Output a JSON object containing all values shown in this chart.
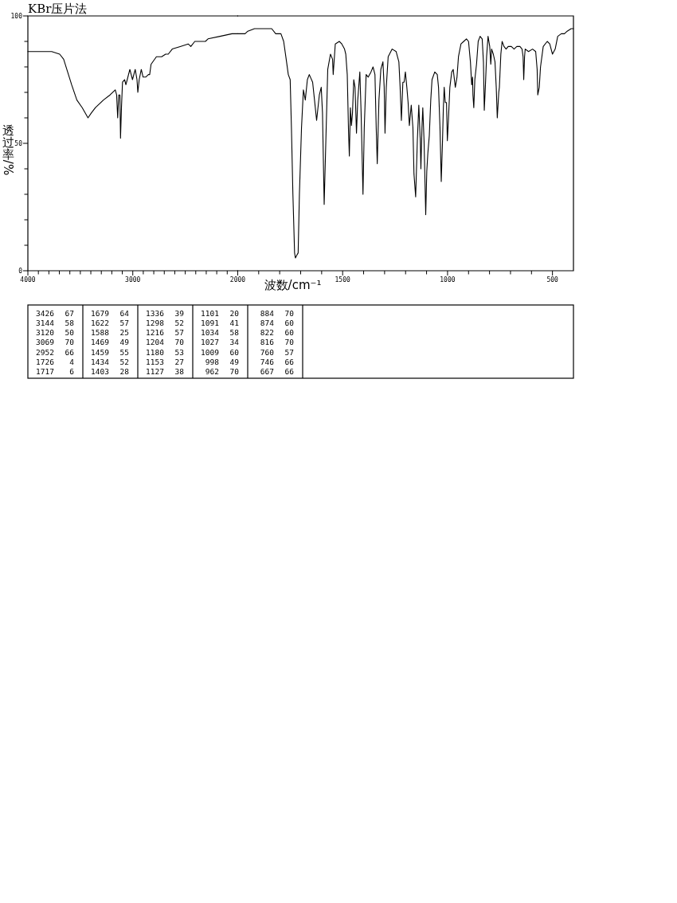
{
  "chart_data": [
    {
      "type": "line",
      "title": "KBr压片法",
      "ylabel": "透过率/%",
      "color": "#000000",
      "x": [
        4000,
        3886,
        3773,
        3697,
        3659,
        3621,
        3583,
        3533,
        3482,
        3427,
        3394,
        3356,
        3280,
        3217,
        3167,
        3154,
        3144,
        3134,
        3123,
        3117,
        3108,
        3098,
        3078,
        3066,
        3053,
        3028,
        3003,
        2977,
        2960,
        2952,
        2939,
        2919,
        2902,
        2877,
        2851,
        2839,
        2826,
        2775,
        2725,
        2687,
        2662,
        2624,
        2548,
        2472,
        2447,
        2409,
        2371,
        2308,
        2283,
        2169,
        2055,
        2005,
        2000
      ],
      "values": [
        86,
        86,
        86,
        85,
        83,
        78,
        73,
        67,
        64,
        60,
        62,
        64,
        67,
        69,
        71,
        69,
        60,
        69,
        69,
        52,
        64,
        74,
        75,
        73,
        75,
        79,
        75,
        79,
        75,
        70,
        75,
        79,
        76,
        76,
        77,
        77,
        81,
        84,
        84,
        85,
        85,
        87,
        88,
        89,
        88,
        90,
        90,
        90,
        91,
        92,
        93,
        93,
        93
      ],
      "xlim": [
        4000,
        2000
      ],
      "xticks": [
        4000,
        {
          "value": 3900,
          "label": null
        },
        {
          "value": 3800,
          "label": null
        },
        {
          "value": 3700,
          "label": null
        },
        {
          "value": 3600,
          "label": null
        },
        {
          "value": 3500,
          "label": null
        },
        {
          "value": 3400,
          "label": null
        },
        {
          "value": 3300,
          "label": null
        },
        {
          "value": 3200,
          "label": null
        },
        {
          "value": 3100,
          "label": null
        },
        3000,
        {
          "value": 2900,
          "label": null
        },
        {
          "value": 2800,
          "label": null
        },
        {
          "value": 2700,
          "label": null
        },
        {
          "value": 2600,
          "label": null
        },
        {
          "value": 2500,
          "label": null
        },
        {
          "value": 2400,
          "label": null
        },
        {
          "value": 2300,
          "label": null
        },
        {
          "value": 2200,
          "label": null
        },
        {
          "value": 2100,
          "label": null
        },
        2000
      ],
      "ylim": [
        0,
        100
      ],
      "yticks": [
        0,
        {
          "value": 10,
          "label": null
        },
        {
          "value": 20,
          "label": null
        },
        {
          "value": 30,
          "label": null
        },
        {
          "value": 40,
          "label": null
        },
        50,
        {
          "value": 60,
          "label": null
        },
        {
          "value": 70,
          "label": null
        },
        {
          "value": 80,
          "label": null
        },
        {
          "value": 90,
          "label": null
        },
        100
      ]
    },
    {
      "type": "line",
      "xlabel": "波数/cm⁻¹",
      "color": "#000000",
      "x": [
        2000,
        1965,
        1952,
        1920,
        1870,
        1838,
        1819,
        1807,
        1794,
        1781,
        1769,
        1759,
        1750,
        1744,
        1737,
        1729,
        1725,
        1719,
        1712,
        1706,
        1696,
        1687,
        1678,
        1668,
        1659,
        1643,
        1634,
        1624,
        1611,
        1602,
        1596,
        1588,
        1580,
        1571,
        1558,
        1548,
        1545,
        1535,
        1516,
        1504,
        1491,
        1485,
        1478,
        1472,
        1468,
        1463,
        1458,
        1453,
        1447,
        1441,
        1434,
        1428,
        1418,
        1412,
        1403,
        1397,
        1388,
        1378,
        1365,
        1355,
        1346,
        1340,
        1335,
        1327,
        1318,
        1308,
        1302,
        1298,
        1292,
        1283,
        1264,
        1245,
        1232,
        1226,
        1220,
        1213,
        1207,
        1201,
        1194,
        1188,
        1182,
        1173,
        1165,
        1160,
        1152,
        1144,
        1137,
        1130,
        1127,
        1122,
        1118,
        1112,
        1104,
        1099,
        1094,
        1087,
        1080,
        1074,
        1061,
        1049,
        1043,
        1036,
        1030,
        1024,
        1020,
        1016,
        1011,
        1005,
        1001,
        996,
        989,
        980,
        973,
        963,
        955,
        948,
        936,
        923,
        910,
        900,
        891,
        885,
        881,
        879,
        875,
        870,
        862,
        854,
        845,
        835,
        829,
        825,
        820,
        814,
        807,
        799,
        794,
        790,
        782,
        774,
        768,
        763,
        756,
        753,
        746,
        740,
        731,
        721,
        711,
        696,
        683,
        670,
        655,
        645,
        640,
        637,
        633,
        630,
        614,
        595,
        580,
        573,
        570,
        563,
        557,
        544,
        525,
        513,
        500,
        487,
        475,
        458,
        443,
        430,
        411,
        400
      ],
      "values": [
        93,
        93,
        94,
        95,
        95,
        95,
        93,
        93,
        93,
        90,
        83,
        77,
        75,
        56,
        30,
        7,
        5,
        6,
        7,
        30,
        56,
        71,
        67,
        75,
        77,
        74,
        67,
        59,
        69,
        72,
        62,
        26,
        51,
        79,
        85,
        83,
        77,
        89,
        90,
        89,
        87,
        85,
        77,
        55,
        45,
        64,
        57,
        62,
        75,
        72,
        54,
        67,
        78,
        62,
        30,
        56,
        77,
        76,
        78,
        80,
        77,
        56,
        42,
        67,
        79,
        82,
        72,
        54,
        72,
        84,
        87,
        86,
        82,
        72,
        59,
        74,
        74,
        78,
        72,
        66,
        57,
        65,
        56,
        38,
        29,
        51,
        65,
        51,
        40,
        56,
        64,
        51,
        22,
        39,
        46,
        53,
        67,
        75,
        78,
        77,
        72,
        56,
        35,
        51,
        64,
        72,
        66,
        66,
        51,
        59,
        72,
        78,
        79,
        72,
        76,
        84,
        89,
        90,
        91,
        90,
        82,
        73,
        76,
        69,
        64,
        75,
        81,
        90,
        92,
        91,
        82,
        63,
        72,
        84,
        92,
        88,
        81,
        87,
        85,
        82,
        72,
        60,
        70,
        72,
        85,
        90,
        88,
        87,
        88,
        88,
        87,
        88,
        88,
        87,
        84,
        75,
        84,
        87,
        86,
        87,
        86,
        79,
        69,
        72,
        80,
        88,
        90,
        89,
        85,
        87,
        92,
        93,
        93,
        94,
        95,
        95
      ],
      "xlim": [
        2000,
        400
      ],
      "xticks": [
        {
          "value": 1900,
          "label": null
        },
        {
          "value": 1800,
          "label": null
        },
        {
          "value": 1700,
          "label": null
        },
        {
          "value": 1600,
          "label": null
        },
        1500,
        {
          "value": 1400,
          "label": null
        },
        {
          "value": 1300,
          "label": null
        },
        {
          "value": 1200,
          "label": null
        },
        {
          "value": 1100,
          "label": null
        },
        1000,
        {
          "value": 900,
          "label": null
        },
        {
          "value": 800,
          "label": null
        },
        {
          "value": 700,
          "label": null
        },
        {
          "value": 600,
          "label": null
        },
        500
      ],
      "ylim": [
        0,
        100
      ],
      "tick_labels": "x"
    },
    {
      "type": "other",
      "annotations": [
        "3426 67",
        "3144 58",
        "3120 50",
        "3069 70",
        "2952 66",
        "1726 4",
        "1717 6",
        "1679 64",
        "1622 57",
        "1588 25",
        "1469 49",
        "1459 55",
        "1434 52",
        "1403 28",
        "1336 39",
        "1298 52",
        "1216 57",
        "1204 70",
        "1180 53",
        "1153 27",
        "1127 38",
        "1101 20",
        "1091 41",
        "1034 58",
        "1027 34",
        "1009 60",
        "998 49",
        "962 70",
        "884 70",
        "874 60",
        "822 60",
        "816 70",
        "760 57",
        "746 66",
        "667 66"
      ]
    }
  ]
}
